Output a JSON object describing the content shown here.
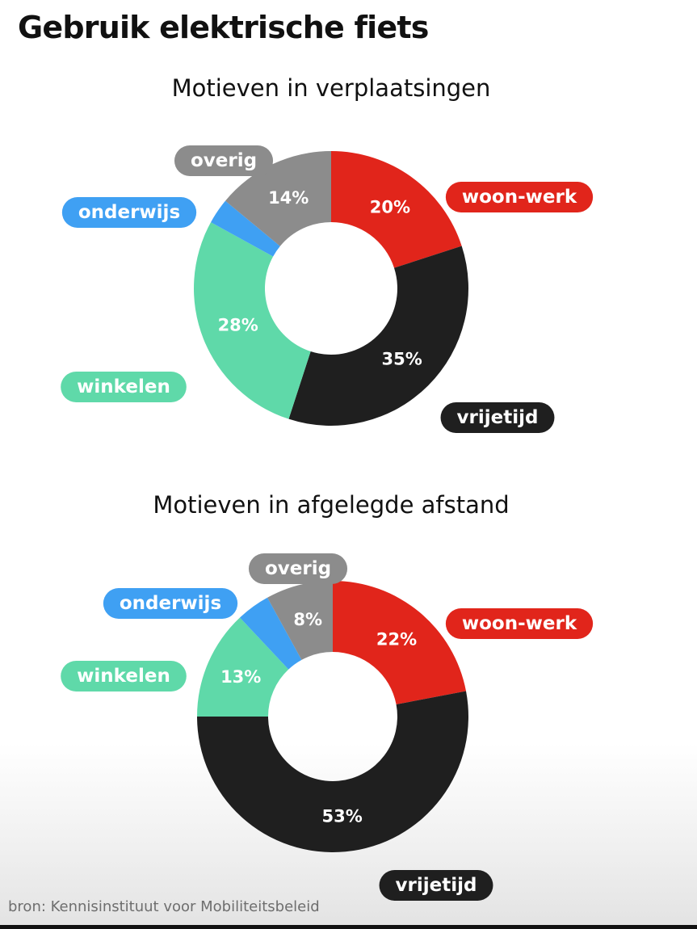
{
  "title": "Gebruik elektrische fiets",
  "source": "bron: Kennisinstituut voor Mobiliteitsbeleid",
  "chart_data": [
    {
      "type": "pie",
      "title": "Motieven in verplaatsingen",
      "series": [
        {
          "name": "woon-werk",
          "value": 20,
          "label": "20%",
          "color": "#e1251b"
        },
        {
          "name": "vrijetijd",
          "value": 35,
          "label": "35%",
          "color": "#1f1f1f"
        },
        {
          "name": "winkelen",
          "value": 28,
          "label": "28%",
          "color": "#5fd9a9"
        },
        {
          "name": "onderwijs",
          "value": 3,
          "label": "",
          "color": "#3fa0f3"
        },
        {
          "name": "overig",
          "value": 14,
          "label": "14%",
          "color": "#8c8c8c"
        }
      ]
    },
    {
      "type": "pie",
      "title": "Motieven in afgelegde afstand",
      "series": [
        {
          "name": "woon-werk",
          "value": 22,
          "label": "22%",
          "color": "#e1251b"
        },
        {
          "name": "vrijetijd",
          "value": 53,
          "label": "53%",
          "color": "#1f1f1f"
        },
        {
          "name": "winkelen",
          "value": 13,
          "label": "13%",
          "color": "#5fd9a9"
        },
        {
          "name": "onderwijs",
          "value": 4,
          "label": "",
          "color": "#3fa0f3"
        },
        {
          "name": "overig",
          "value": 8,
          "label": "8%",
          "color": "#8c8c8c"
        }
      ]
    }
  ]
}
